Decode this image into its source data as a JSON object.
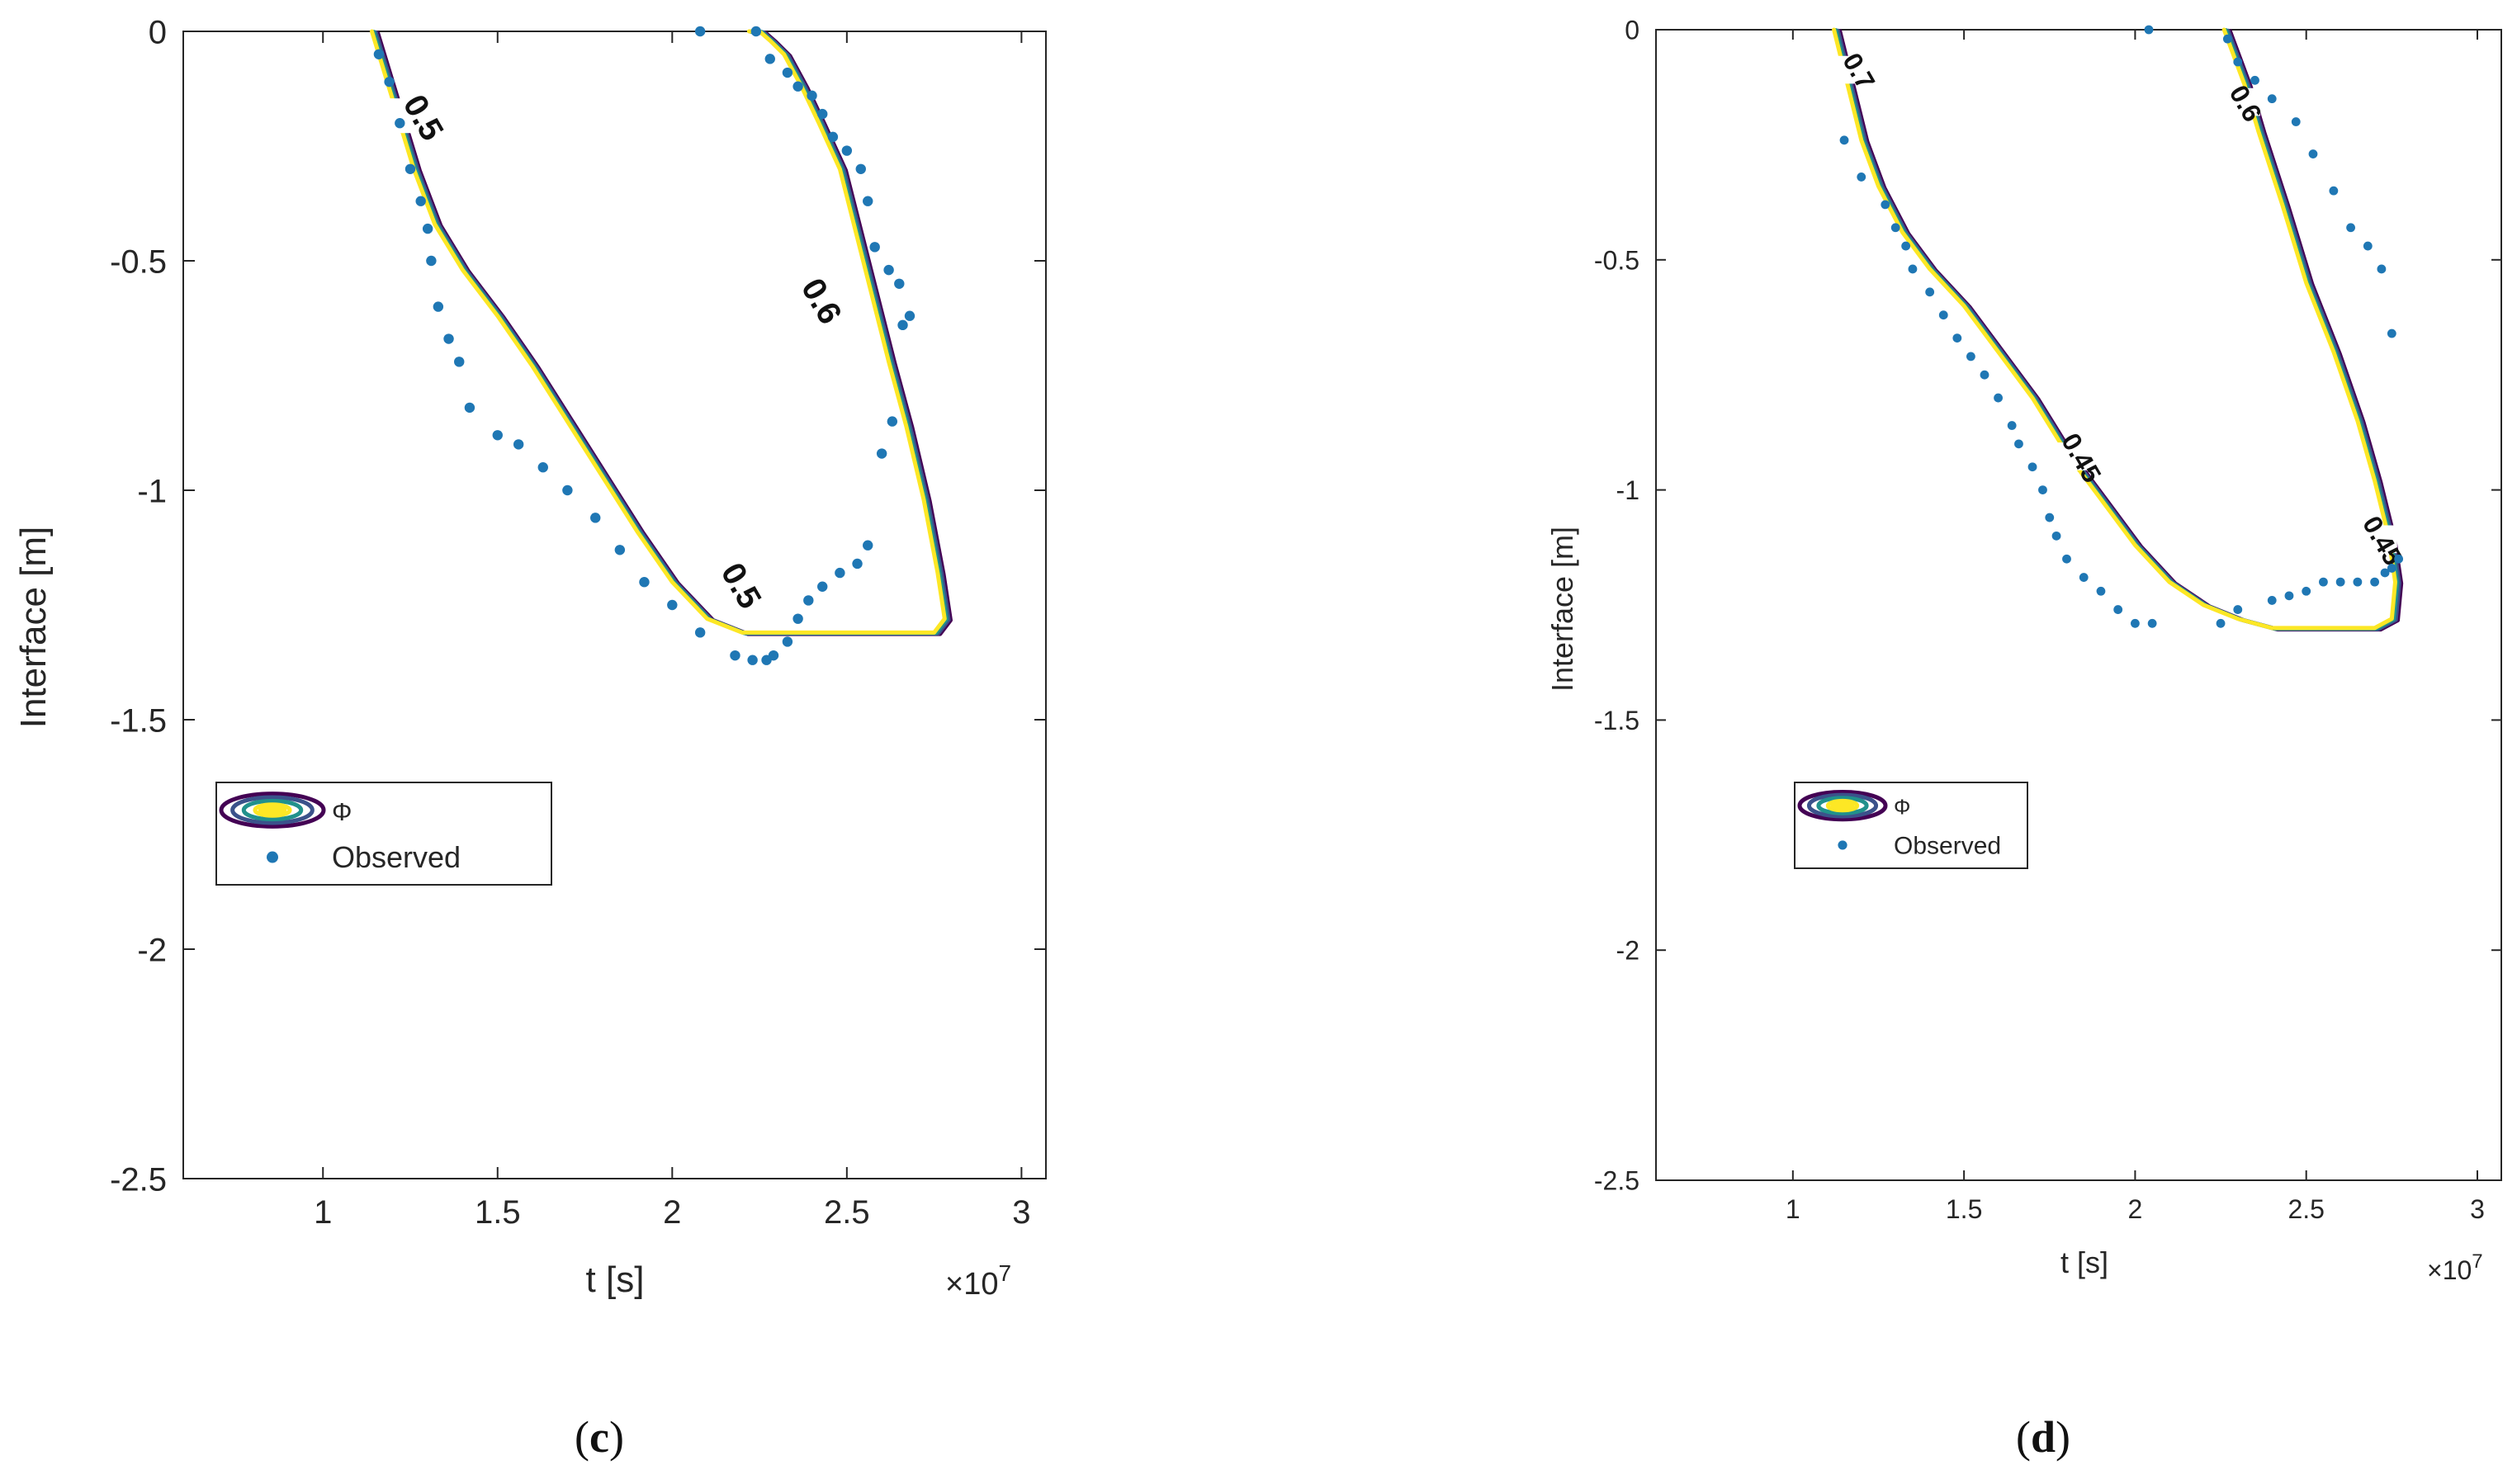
{
  "figure": {
    "panels": [
      {
        "caption_open": "(",
        "caption_letter": "c",
        "caption_close": ")"
      },
      {
        "caption_open": "(",
        "caption_letter": "d",
        "caption_close": ")"
      }
    ]
  },
  "chart_data": [
    {
      "type": "scatter",
      "panel": "c",
      "xlabel": "t [s]",
      "ylabel": "Interface [m]",
      "x_multiplier": "×10",
      "x_multiplier_exp": "7",
      "xlim": [
        0.6,
        3.07
      ],
      "ylim": [
        -2.5,
        0
      ],
      "xticks": [
        1,
        1.5,
        2,
        2.5,
        3
      ],
      "xtick_labels": [
        "1",
        "1.5",
        "2",
        "2.5",
        "3"
      ],
      "yticks": [
        0,
        -0.5,
        -1,
        -1.5,
        -2,
        -2.5
      ],
      "ytick_labels": [
        "0",
        "-0.5",
        "-1",
        "-1.5",
        "-2",
        "-2.5"
      ],
      "legend": {
        "placement": "middle-left",
        "entries": [
          "Φ",
          "Observed"
        ]
      },
      "grid": false,
      "contour_colors": [
        "#fde725",
        "#21918c",
        "#3b528b",
        "#440154"
      ],
      "series": [
        {
          "name": "Φ",
          "kind": "contour",
          "x": [
            1.14,
            1.2,
            1.26,
            1.32,
            1.4,
            1.5,
            1.6,
            1.7,
            1.8,
            1.9,
            2.0,
            2.1,
            2.2,
            2.3,
            2.4,
            2.5,
            2.6,
            2.7,
            2.75,
            2.78,
            2.76,
            2.72,
            2.67,
            2.62,
            2.58,
            2.53,
            2.48,
            2.42,
            2.37,
            2.32,
            2.28,
            2.25,
            2.23,
            2.22
          ],
          "y": [
            0.0,
            -0.15,
            -0.3,
            -0.42,
            -0.52,
            -0.62,
            -0.73,
            -0.85,
            -0.97,
            -1.09,
            -1.2,
            -1.28,
            -1.31,
            -1.31,
            -1.31,
            -1.31,
            -1.31,
            -1.31,
            -1.31,
            -1.28,
            -1.18,
            -1.02,
            -0.86,
            -0.72,
            -0.6,
            -0.45,
            -0.3,
            -0.2,
            -0.12,
            -0.05,
            -0.02,
            0.0,
            0.0,
            0.0
          ],
          "contour_labels": [
            {
              "text": "0.5",
              "x": 1.26,
              "y": -0.2
            },
            {
              "text": "0.6",
              "x": 2.4,
              "y": -0.6
            },
            {
              "text": "0.5",
              "x": 2.17,
              "y": -1.22
            }
          ]
        },
        {
          "name": "Observed",
          "kind": "scatter",
          "color": "#1f77b4",
          "x": [
            1.16,
            1.19,
            1.22,
            1.25,
            1.28,
            1.3,
            1.31,
            1.33,
            1.36,
            1.39,
            1.42,
            1.5,
            1.56,
            1.63,
            1.7,
            1.78,
            1.85,
            1.92,
            2.0,
            2.08,
            2.18,
            2.23,
            2.27,
            2.29,
            2.33,
            2.36,
            2.39,
            2.43,
            2.48,
            2.53,
            2.56,
            2.6,
            2.63,
            2.66,
            2.68,
            2.65,
            2.62,
            2.58,
            2.56,
            2.54,
            2.5,
            2.46,
            2.43,
            2.4,
            2.36,
            2.33,
            2.28,
            2.24,
            2.08
          ],
          "y": [
            -0.05,
            -0.11,
            -0.2,
            -0.3,
            -0.37,
            -0.43,
            -0.5,
            -0.6,
            -0.67,
            -0.72,
            -0.82,
            -0.88,
            -0.9,
            -0.95,
            -1.0,
            -1.06,
            -1.13,
            -1.2,
            -1.25,
            -1.31,
            -1.36,
            -1.37,
            -1.37,
            -1.36,
            -1.33,
            -1.28,
            -1.24,
            -1.21,
            -1.18,
            -1.16,
            -1.12,
            -0.92,
            -0.85,
            -0.64,
            -0.62,
            -0.55,
            -0.52,
            -0.47,
            -0.37,
            -0.3,
            -0.26,
            -0.23,
            -0.18,
            -0.14,
            -0.12,
            -0.09,
            -0.06,
            0.0,
            0.0
          ]
        }
      ]
    },
    {
      "type": "scatter",
      "panel": "d",
      "xlabel": "t [s]",
      "ylabel": "Interface [m]",
      "x_multiplier": "×10",
      "x_multiplier_exp": "7",
      "xlim": [
        0.6,
        3.07
      ],
      "ylim": [
        -2.5,
        0
      ],
      "xticks": [
        1,
        1.5,
        2,
        2.5,
        3
      ],
      "xtick_labels": [
        "1",
        "1.5",
        "2",
        "2.5",
        "3"
      ],
      "yticks": [
        0,
        -0.5,
        -1,
        -1.5,
        -2,
        -2.5
      ],
      "ytick_labels": [
        "0",
        "-0.5",
        "-1",
        "-1.5",
        "-2",
        "-2.5"
      ],
      "legend": {
        "placement": "middle-left",
        "entries": [
          "Φ",
          "Observed"
        ]
      },
      "grid": false,
      "contour_colors": [
        "#fde725",
        "#21918c",
        "#3b528b",
        "#440154"
      ],
      "series": [
        {
          "name": "Φ",
          "kind": "contour",
          "x": [
            1.12,
            1.16,
            1.2,
            1.25,
            1.32,
            1.4,
            1.5,
            1.6,
            1.7,
            1.8,
            1.9,
            2.0,
            2.1,
            2.2,
            2.3,
            2.4,
            2.5,
            2.6,
            2.7,
            2.75,
            2.76,
            2.74,
            2.7,
            2.65,
            2.58,
            2.5,
            2.43,
            2.36,
            2.32,
            2.29,
            2.27,
            2.26
          ],
          "y": [
            0.0,
            -0.12,
            -0.24,
            -0.34,
            -0.44,
            -0.52,
            -0.6,
            -0.7,
            -0.8,
            -0.92,
            -1.02,
            -1.12,
            -1.2,
            -1.25,
            -1.28,
            -1.3,
            -1.3,
            -1.3,
            -1.3,
            -1.28,
            -1.2,
            -1.1,
            -0.98,
            -0.85,
            -0.7,
            -0.55,
            -0.38,
            -0.22,
            -0.12,
            -0.06,
            -0.02,
            0.0
          ],
          "contour_labels": [
            {
              "text": "0.7",
              "x": 1.17,
              "y": -0.1
            },
            {
              "text": "0.6",
              "x": 2.3,
              "y": -0.17
            },
            {
              "text": "0.45",
              "x": 1.82,
              "y": -0.94
            },
            {
              "text": "0.45",
              "x": 2.7,
              "y": -1.12
            }
          ]
        },
        {
          "name": "Observed",
          "kind": "scatter",
          "color": "#1f77b4",
          "x": [
            1.15,
            1.2,
            1.27,
            1.3,
            1.33,
            1.35,
            1.4,
            1.44,
            1.48,
            1.52,
            1.56,
            1.6,
            1.64,
            1.66,
            1.7,
            1.73,
            1.75,
            1.77,
            1.8,
            1.85,
            1.9,
            1.95,
            2.0,
            2.05,
            2.25,
            2.3,
            2.4,
            2.45,
            2.5,
            2.55,
            2.6,
            2.65,
            2.7,
            2.73,
            2.75,
            2.77,
            2.75,
            2.72,
            2.68,
            2.63,
            2.58,
            2.52,
            2.47,
            2.4,
            2.35,
            2.3,
            2.27,
            2.04
          ],
          "y": [
            -0.24,
            -0.32,
            -0.38,
            -0.43,
            -0.47,
            -0.52,
            -0.57,
            -0.62,
            -0.67,
            -0.71,
            -0.75,
            -0.8,
            -0.86,
            -0.9,
            -0.95,
            -1.0,
            -1.06,
            -1.1,
            -1.15,
            -1.19,
            -1.22,
            -1.26,
            -1.29,
            -1.29,
            -1.29,
            -1.26,
            -1.24,
            -1.23,
            -1.22,
            -1.2,
            -1.2,
            -1.2,
            -1.2,
            -1.18,
            -1.17,
            -1.15,
            -0.66,
            -0.52,
            -0.47,
            -0.43,
            -0.35,
            -0.27,
            -0.2,
            -0.15,
            -0.11,
            -0.07,
            -0.02,
            0.0
          ]
        }
      ]
    }
  ]
}
